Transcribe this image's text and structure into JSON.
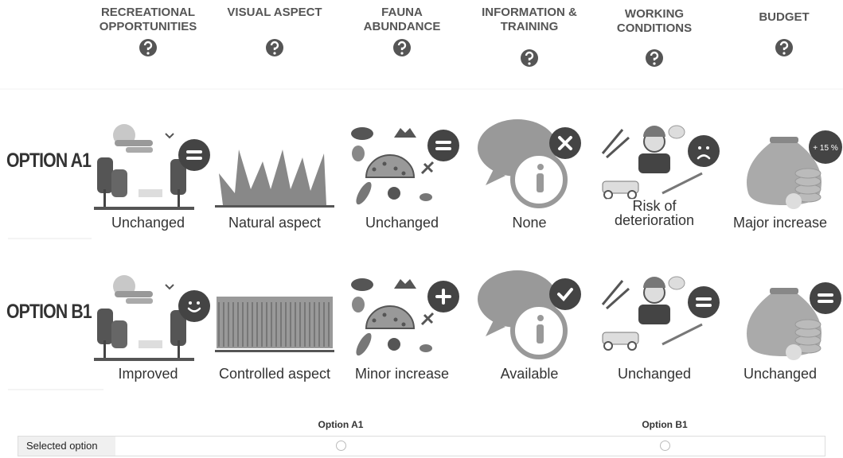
{
  "header": {
    "attributes": [
      "RECREATIONAL OPPORTUNITIES",
      "VISUAL ASPECT",
      "FAUNA ABUNDANCE",
      "INFORMATION & TRAINING",
      "WORKING CONDITIONS",
      "BUDGET"
    ]
  },
  "options": [
    {
      "label": "OPTION A1",
      "levels": [
        "Unchanged",
        "Natural aspect",
        "Unchanged",
        "None",
        "Risk of deterioration",
        "Major increase"
      ]
    },
    {
      "label": "OPTION B1",
      "levels": [
        "Improved",
        "Controlled aspect",
        "Minor increase",
        "Available",
        "Unchanged",
        "Unchanged"
      ]
    }
  ],
  "budget_badge": "+ 15 %",
  "choice": {
    "columns": [
      "Option A1",
      "Option B1"
    ],
    "row_label": "Selected option"
  }
}
